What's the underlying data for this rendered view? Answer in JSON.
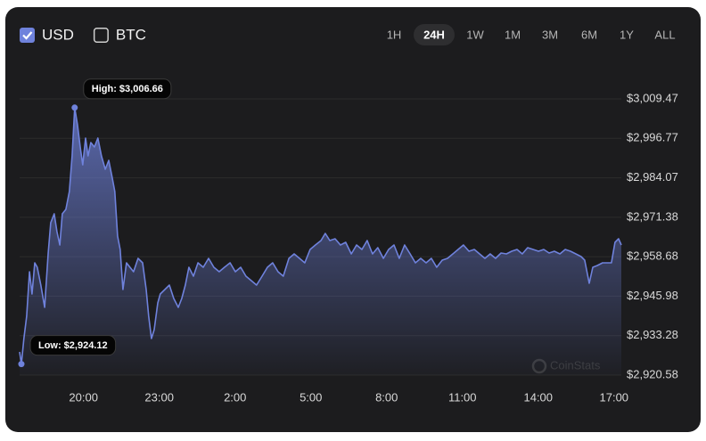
{
  "currencies": [
    {
      "label": "USD",
      "checked": true
    },
    {
      "label": "BTC",
      "checked": false
    }
  ],
  "ranges": [
    "1H",
    "24H",
    "1W",
    "1M",
    "3M",
    "6M",
    "1Y",
    "ALL"
  ],
  "active_range": "24H",
  "chart_data": {
    "type": "line",
    "area": true,
    "grid": true,
    "color": "#6f82dc",
    "watermark": "CoinStats",
    "xlim": [
      17.47,
      41.29
    ],
    "xticks": [
      {
        "value": 20,
        "label": "20:00"
      },
      {
        "value": 23,
        "label": "23:00"
      },
      {
        "value": 26,
        "label": "2:00"
      },
      {
        "value": 29,
        "label": "5:00"
      },
      {
        "value": 32,
        "label": "8:00"
      },
      {
        "value": 35,
        "label": "11:00"
      },
      {
        "value": 38,
        "label": "14:00"
      },
      {
        "value": 41,
        "label": "17:00"
      }
    ],
    "ylim": [
      2920.58,
      3009.47
    ],
    "yticks": [
      {
        "value": 2920.58,
        "label": "$2,920.58"
      },
      {
        "value": 2933.28,
        "label": "$2,933.28"
      },
      {
        "value": 2945.98,
        "label": "$2,945.98"
      },
      {
        "value": 2958.68,
        "label": "$2,958.68"
      },
      {
        "value": 2971.38,
        "label": "$2,971.38"
      },
      {
        "value": 2984.07,
        "label": "$2,984.07"
      },
      {
        "value": 2996.77,
        "label": "$2,996.77"
      },
      {
        "value": 3009.47,
        "label": "$3,009.47"
      }
    ],
    "annotations": [
      {
        "label": "High: $3,006.66",
        "x": 19.65,
        "value": 3006.66
      },
      {
        "label": "Low: $2,924.12",
        "x": 17.54,
        "value": 2924.12
      }
    ],
    "x": [
      17.47,
      17.54,
      17.64,
      17.75,
      17.86,
      17.96,
      18.07,
      18.17,
      18.31,
      18.46,
      18.6,
      18.7,
      18.84,
      18.95,
      19.06,
      19.16,
      19.3,
      19.44,
      19.55,
      19.65,
      19.76,
      19.87,
      19.97,
      20.08,
      20.18,
      20.29,
      20.43,
      20.57,
      20.71,
      20.86,
      21.0,
      21.14,
      21.24,
      21.35,
      21.45,
      21.56,
      21.7,
      21.84,
      21.98,
      22.16,
      22.34,
      22.48,
      22.58,
      22.69,
      22.8,
      22.94,
      23.04,
      23.22,
      23.4,
      23.57,
      23.75,
      23.89,
      24.03,
      24.17,
      24.35,
      24.53,
      24.74,
      24.95,
      25.16,
      25.37,
      25.58,
      25.8,
      26.01,
      26.22,
      26.43,
      26.64,
      26.85,
      27.07,
      27.28,
      27.49,
      27.7,
      27.91,
      28.13,
      28.34,
      28.55,
      28.76,
      28.97,
      29.18,
      29.4,
      29.57,
      29.75,
      29.96,
      30.17,
      30.38,
      30.6,
      30.81,
      31.02,
      31.23,
      31.44,
      31.65,
      31.87,
      32.08,
      32.29,
      32.5,
      32.71,
      32.93,
      33.14,
      33.35,
      33.56,
      33.77,
      33.98,
      34.2,
      34.41,
      34.62,
      34.83,
      35.04,
      35.26,
      35.47,
      35.68,
      35.89,
      36.1,
      36.31,
      36.53,
      36.74,
      36.95,
      37.16,
      37.37,
      37.58,
      37.8,
      38.01,
      38.22,
      38.43,
      38.64,
      38.86,
      39.07,
      39.28,
      39.49,
      39.7,
      39.84,
      40.02,
      40.16,
      40.34,
      40.55,
      40.76,
      40.9,
      41.04,
      41.18,
      41.29
    ],
    "values": [
      2928.04,
      2924.12,
      2932.34,
      2939.51,
      2953.85,
      2946.68,
      2956.71,
      2955.28,
      2949.54,
      2942.38,
      2959.58,
      2969.62,
      2972.49,
      2966.75,
      2962.45,
      2972.49,
      2973.92,
      2979.66,
      2991.13,
      3006.66,
      3001.17,
      2994.0,
      2988.26,
      2996.86,
      2991.13,
      2995.43,
      2994.0,
      2996.86,
      2991.13,
      2986.83,
      2989.69,
      2983.96,
      2979.66,
      2965.32,
      2961.02,
      2948.11,
      2956.71,
      2955.28,
      2953.85,
      2958.15,
      2956.71,
      2948.11,
      2939.51,
      2932.34,
      2935.21,
      2943.81,
      2946.68,
      2948.11,
      2949.54,
      2945.24,
      2942.38,
      2945.24,
      2949.54,
      2955.28,
      2952.41,
      2956.71,
      2955.28,
      2958.15,
      2955.28,
      2953.85,
      2955.28,
      2956.71,
      2953.85,
      2955.28,
      2952.41,
      2950.98,
      2949.54,
      2952.41,
      2955.28,
      2956.71,
      2953.85,
      2952.41,
      2958.15,
      2959.58,
      2958.15,
      2956.71,
      2961.02,
      2962.45,
      2963.88,
      2966.18,
      2963.88,
      2964.46,
      2962.45,
      2963.31,
      2959.58,
      2962.45,
      2961.02,
      2963.88,
      2959.58,
      2961.59,
      2958.15,
      2961.02,
      2962.45,
      2958.15,
      2962.45,
      2959.58,
      2956.71,
      2958.15,
      2956.71,
      2958.15,
      2955.28,
      2957.57,
      2958.15,
      2959.58,
      2961.02,
      2962.45,
      2960.44,
      2961.02,
      2959.58,
      2958.15,
      2959.58,
      2958.15,
      2959.87,
      2959.58,
      2960.44,
      2961.02,
      2959.58,
      2961.59,
      2961.02,
      2960.44,
      2961.02,
      2959.87,
      2960.44,
      2959.58,
      2961.02,
      2960.44,
      2959.58,
      2958.72,
      2957.57,
      2950.12,
      2955.28,
      2955.85,
      2956.71,
      2956.71,
      2956.71,
      2963.31,
      2964.46,
      2962.45
    ]
  }
}
